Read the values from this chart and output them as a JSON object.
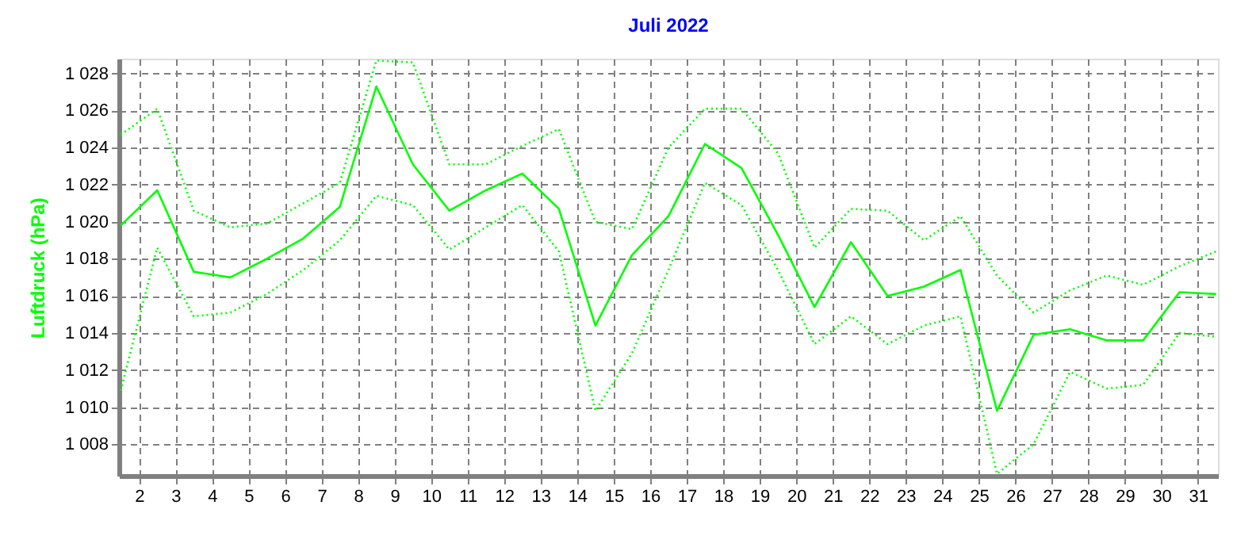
{
  "chart_data": {
    "type": "line",
    "title": "Juli 2022",
    "ylabel": "Luftdruck (hPa)",
    "x": [
      1.5,
      2.5,
      3.5,
      4.5,
      5.5,
      6.5,
      7.5,
      8.5,
      9.5,
      10.5,
      11.5,
      12.5,
      13.5,
      14.5,
      15.5,
      16.5,
      17.5,
      18.5,
      19.5,
      20.5,
      21.5,
      22.5,
      23.5,
      24.5,
      25.5,
      26.5,
      27.5,
      28.5,
      29.5,
      30.5,
      31.5
    ],
    "series": [
      {
        "color": "#00ff00",
        "line_style": "dotted",
        "values": [
          1024.7,
          1026.1,
          1020.6,
          1019.7,
          1019.9,
          1021.0,
          1022.1,
          1028.7,
          1028.6,
          1023.1,
          1023.1,
          1024.1,
          1025.0,
          1020.0,
          1019.6,
          1024.0,
          1026.1,
          1026.1,
          1023.7,
          1018.6,
          1020.7,
          1020.6,
          1019.0,
          1020.3,
          1017.1,
          1015.1,
          1016.3,
          1017.1,
          1016.6,
          1017.6,
          1018.4
        ]
      },
      {
        "color": "#00ff00",
        "line_style": "solid",
        "values": [
          1019.8,
          1021.7,
          1017.3,
          1017.0,
          1018.0,
          1019.1,
          1020.8,
          1027.3,
          1023.1,
          1020.6,
          1021.7,
          1022.6,
          1020.7,
          1014.4,
          1018.2,
          1020.3,
          1024.2,
          1022.9,
          1019.3,
          1015.4,
          1018.9,
          1016.0,
          1016.5,
          1017.4,
          1009.8,
          1013.9,
          1014.2,
          1013.6,
          1013.6,
          1016.2,
          1016.1
        ]
      },
      {
        "color": "#00ff00",
        "line_style": "dotted",
        "values": [
          1010.9,
          1018.6,
          1014.9,
          1015.1,
          1016.1,
          1017.4,
          1019.0,
          1021.4,
          1020.9,
          1018.5,
          1019.7,
          1020.9,
          1018.4,
          1009.8,
          1012.9,
          1017.4,
          1022.1,
          1020.9,
          1017.4,
          1013.4,
          1014.9,
          1013.4,
          1014.4,
          1014.9,
          1006.4,
          1008.0,
          1011.9,
          1011.0,
          1011.2,
          1014.0,
          1013.8
        ]
      }
    ],
    "xlim": [
      1.45,
      31.55
    ],
    "xticks": [
      2,
      3,
      4,
      5,
      6,
      7,
      8,
      9,
      10,
      11,
      12,
      13,
      14,
      15,
      16,
      17,
      18,
      19,
      20,
      21,
      22,
      23,
      24,
      25,
      26,
      27,
      28,
      29,
      30,
      31
    ],
    "ylim": [
      1006.3,
      1028.8
    ],
    "yticks": [
      {
        "value": 1008,
        "label": "1 008"
      },
      {
        "value": 1010,
        "label": "1 010"
      },
      {
        "value": 1012,
        "label": "1 012"
      },
      {
        "value": 1014,
        "label": "1 014"
      },
      {
        "value": 1016,
        "label": "1 016"
      },
      {
        "value": 1018,
        "label": "1 018"
      },
      {
        "value": 1020,
        "label": "1 020"
      },
      {
        "value": 1022,
        "label": "1 022"
      },
      {
        "value": 1024,
        "label": "1 024"
      },
      {
        "value": 1026,
        "label": "1 026"
      },
      {
        "value": 1028,
        "label": "1 028"
      }
    ],
    "grid": true
  }
}
